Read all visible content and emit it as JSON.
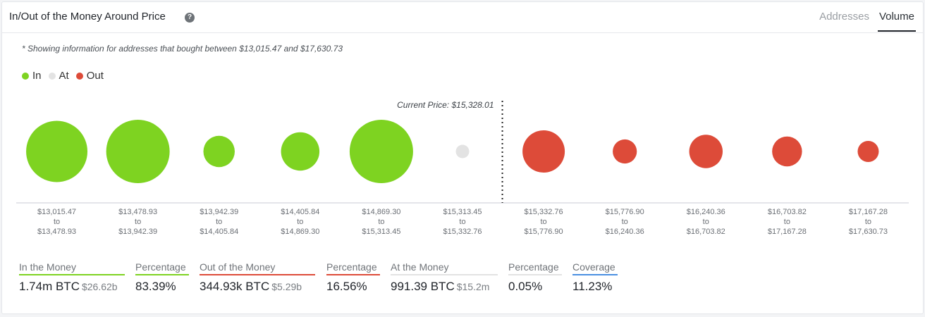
{
  "header": {
    "title": "In/Out of the Money Around Price",
    "help_icon": "question-circle-icon",
    "tabs": [
      {
        "label": "Addresses",
        "active": false
      },
      {
        "label": "Volume",
        "active": true
      }
    ]
  },
  "note": "* Showing information for addresses that bought between $13,015.47 and $17,630.73",
  "legend": [
    {
      "label": "In",
      "color": "#7ed321"
    },
    {
      "label": "At",
      "color": "#e3e3e3"
    },
    {
      "label": "Out",
      "color": "#dd4b39"
    }
  ],
  "colors": {
    "in": "#7ed321",
    "at": "#e3e3e3",
    "out": "#dd4b39"
  },
  "chart_data": {
    "type": "bubble",
    "current_price_label": "Current Price: $15,328.01",
    "current_price_after_index": 5,
    "size_basis": "relative BTC volume per price range (estimated from bubble area)",
    "ranges": [
      {
        "from": "$13,015.47",
        "to": "$13,478.93",
        "status": "in",
        "value": 84
      },
      {
        "from": "$13,478.93",
        "to": "$13,942.39",
        "status": "in",
        "value": 90
      },
      {
        "from": "$13,942.39",
        "to": "$14,405.84",
        "status": "in",
        "value": 22
      },
      {
        "from": "$14,405.84",
        "to": "$14,869.30",
        "status": "in",
        "value": 33
      },
      {
        "from": "$14,869.30",
        "to": "$15,313.45",
        "status": "in",
        "value": 90
      },
      {
        "from": "$15,313.45",
        "to": "$15,332.76",
        "status": "at",
        "value": 4
      },
      {
        "from": "$15,332.76",
        "to": "$15,776.90",
        "status": "out",
        "value": 40
      },
      {
        "from": "$15,776.90",
        "to": "$16,240.36",
        "status": "out",
        "value": 13
      },
      {
        "from": "$16,240.36",
        "to": "$16,703.82",
        "status": "out",
        "value": 25
      },
      {
        "from": "$16,703.82",
        "to": "$17,167.28",
        "status": "out",
        "value": 20
      },
      {
        "from": "$17,167.28",
        "to": "$17,630.73",
        "status": "out",
        "value": 10
      }
    ],
    "range_joiner": "to"
  },
  "stats": [
    {
      "label": "In the Money",
      "value": "1.74m BTC",
      "sub": "$26.62b",
      "color": "#7ed321"
    },
    {
      "label": "Percentage",
      "value": "83.39%",
      "sub": "",
      "color": "#7ed321"
    },
    {
      "label": "Out of the Money",
      "value": "344.93k BTC",
      "sub": "$5.29b",
      "color": "#dd4b39"
    },
    {
      "label": "Percentage",
      "value": "16.56%",
      "sub": "",
      "color": "#dd4b39"
    },
    {
      "label": "At the Money",
      "value": "991.39 BTC",
      "sub": "$15.2m",
      "color": "#e3e3e3"
    },
    {
      "label": "Percentage",
      "value": "0.05%",
      "sub": "",
      "color": "#e3e3e3"
    },
    {
      "label": "Coverage",
      "value": "11.23%",
      "sub": "",
      "color": "#4a90e2"
    }
  ]
}
